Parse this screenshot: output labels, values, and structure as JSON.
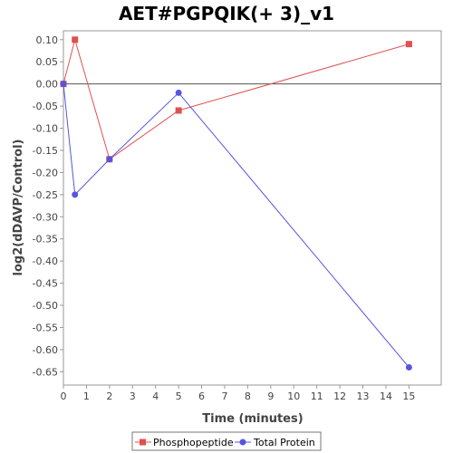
{
  "chart_data": {
    "type": "line",
    "title": "AET#PGPQIK(+ 3)_v1",
    "xlabel": "Time (minutes)",
    "ylabel": "log2(dDAVP/Control)",
    "xlim": [
      0,
      16.4
    ],
    "ylim": [
      -0.68,
      0.12
    ],
    "xticks": [
      0,
      1,
      2,
      3,
      4,
      5,
      6,
      7,
      8,
      9,
      10,
      11,
      12,
      13,
      14,
      15
    ],
    "yticks": [
      0.1,
      0.05,
      0.0,
      -0.05,
      -0.1,
      -0.15,
      -0.2,
      -0.25,
      -0.3,
      -0.35,
      -0.4,
      -0.45,
      -0.5,
      -0.55,
      -0.6,
      -0.65
    ],
    "ytick_labels": [
      "0.10",
      "0.05",
      "0.00",
      "-0.05",
      "-0.10",
      "-0.15",
      "-0.20",
      "-0.25",
      "-0.30",
      "-0.35",
      "-0.40",
      "-0.45",
      "-0.50",
      "-0.55",
      "-0.60",
      "-0.65"
    ],
    "zero_line": true,
    "grid": false,
    "legend_position": "bottom",
    "series": [
      {
        "name": "Phosphopeptide",
        "color": "#e05050",
        "marker": "square",
        "x": [
          0,
          0.5,
          2,
          5,
          15
        ],
        "y": [
          0.0,
          0.1,
          -0.17,
          -0.06,
          0.09
        ]
      },
      {
        "name": "Total Protein",
        "color": "#5555e0",
        "marker": "circle",
        "x": [
          0,
          0.5,
          2,
          5,
          15
        ],
        "y": [
          0.0,
          -0.25,
          -0.17,
          -0.02,
          -0.64
        ]
      }
    ]
  }
}
